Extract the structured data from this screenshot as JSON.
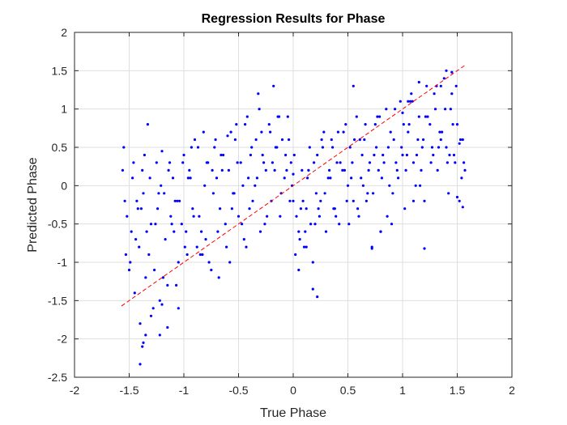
{
  "chart_data": {
    "type": "scatter",
    "title": "Regression Results for Phase",
    "xlabel": "True Phase",
    "ylabel": "Predicted Phase",
    "xlim": [
      -2,
      2
    ],
    "ylim": [
      -2.5,
      2
    ],
    "xticks": [
      -2,
      -1.5,
      -1,
      -0.5,
      0,
      0.5,
      1,
      1.5,
      2
    ],
    "xtick_labels": [
      "-2",
      "-1.5",
      "-1",
      "-0.5",
      "0",
      "0.5",
      "1",
      "1.5",
      "2"
    ],
    "yticks": [
      -2.5,
      -2,
      -1.5,
      -1,
      -0.5,
      0,
      0.5,
      1,
      1.5,
      2
    ],
    "ytick_labels": [
      "-2.5",
      "-2",
      "-1.5",
      "-1",
      "-0.5",
      "0",
      "0.5",
      "1",
      "1.5",
      "2"
    ],
    "grid": true,
    "colors": {
      "points": "#0000ff",
      "reference_line": "#ff0000",
      "grid": "#dfdfdf",
      "axes": "#262626"
    },
    "reference_line": {
      "style": "dashed",
      "x": [
        -1.57,
        1.57
      ],
      "y": [
        -1.57,
        1.57
      ]
    },
    "series": [
      {
        "x": [
          -1.55,
          -1.53,
          -1.5,
          -1.48,
          -1.45,
          -1.42,
          -1.4,
          -1.38,
          -1.35,
          -1.33,
          -1.3,
          -1.28,
          -1.25,
          -1.22,
          -1.2,
          -1.18,
          -1.15,
          -1.12,
          -1.1,
          -1.08,
          -1.05,
          -1.02,
          -1.0,
          -0.98,
          -0.95,
          -0.92,
          -0.9,
          -0.88,
          -0.85,
          -0.82,
          -0.8,
          -0.78,
          -0.75,
          -0.72,
          -0.7,
          -0.68,
          -0.65,
          -0.62,
          -0.6,
          -0.58,
          -0.55,
          -0.52,
          -0.5,
          -0.48,
          -0.45,
          -0.42,
          -0.4,
          -0.38,
          -0.35,
          -0.32,
          -0.3,
          -0.28,
          -0.25,
          -0.22,
          -0.2,
          -0.18,
          -0.15,
          -0.12,
          -0.1,
          -0.08,
          -0.05,
          -0.02,
          0.0,
          0.02,
          0.05,
          0.08,
          0.1,
          0.12,
          0.15,
          0.18,
          0.2,
          0.22,
          0.25,
          0.28,
          0.3,
          0.32,
          0.35,
          0.38,
          0.4,
          0.42,
          0.45,
          0.48,
          0.5,
          0.52,
          0.55,
          0.58,
          0.6,
          0.62,
          0.65,
          0.68,
          0.7,
          0.72,
          0.75,
          0.78,
          0.8,
          0.82,
          0.85,
          0.88,
          0.9,
          0.92,
          0.95,
          0.98,
          1.0,
          1.02,
          1.05,
          1.08,
          1.1,
          1.12,
          1.15,
          1.18,
          1.2,
          1.22,
          1.25,
          1.28,
          1.3,
          1.32,
          1.35,
          1.38,
          1.4,
          1.42,
          1.45,
          1.48,
          1.5,
          1.52,
          1.55,
          1.57,
          -1.56,
          -1.52,
          -1.49,
          -1.46,
          -1.43,
          -1.41,
          -1.37,
          -1.34,
          -1.31,
          -1.27,
          -1.24,
          -1.21,
          -1.17,
          -1.14,
          -1.11,
          -1.07,
          -1.04,
          -1.01,
          -0.97,
          -0.94,
          -0.91,
          -0.87,
          -0.84,
          -0.81,
          -0.77,
          -0.74,
          -0.71,
          -0.67,
          -0.64,
          -0.61,
          -0.57,
          -0.54,
          -0.51,
          -0.47,
          -0.44,
          -0.41,
          -0.37,
          -0.34,
          -0.31,
          -0.27,
          -0.24,
          -0.21,
          -0.17,
          -0.14,
          -0.11,
          -0.07,
          -0.04,
          -0.01,
          0.03,
          0.06,
          0.09,
          0.13,
          0.16,
          0.19,
          0.23,
          0.26,
          0.29,
          0.33,
          0.36,
          0.39,
          0.43,
          0.46,
          0.49,
          0.53,
          0.56,
          0.59,
          0.63,
          0.66,
          0.69,
          0.73,
          0.76,
          0.79,
          0.83,
          0.86,
          0.89,
          0.93,
          0.96,
          0.99,
          1.03,
          1.06,
          1.09,
          1.13,
          1.16,
          1.19,
          1.23,
          1.26,
          1.29,
          1.33,
          1.36,
          1.39,
          1.43,
          1.46,
          1.49,
          1.53,
          1.56,
          -1.54,
          -1.47,
          -1.44,
          -1.39,
          -1.36,
          -1.32,
          -1.26,
          -1.23,
          -1.19,
          -1.13,
          -1.09,
          -1.06,
          -0.99,
          -0.96,
          -0.93,
          -0.86,
          -0.83,
          -0.79,
          -0.73,
          -0.69,
          -0.66,
          -0.59,
          -0.56,
          -0.53,
          -0.46,
          -0.43,
          -0.39,
          -0.33,
          -0.29,
          -0.26,
          -0.19,
          -0.16,
          -0.13,
          -0.06,
          -0.03,
          0.01,
          0.07,
          0.11,
          0.14,
          0.21,
          0.24,
          0.27,
          0.34,
          0.37,
          0.41,
          0.47,
          0.51,
          0.54,
          0.61,
          0.64,
          0.67,
          0.74,
          0.77,
          0.81,
          0.87,
          0.91,
          0.94,
          1.01,
          1.04,
          1.07,
          1.14,
          1.17,
          1.21,
          1.27,
          1.31,
          1.34,
          1.41,
          1.44,
          1.47,
          1.54,
          -1.4,
          -1.38,
          -1.37,
          -1.35,
          -1.3,
          -1.22,
          -1.2,
          -1.15,
          -1.05,
          0.0,
          0.05,
          0.12,
          0.18,
          0.22,
          0.55,
          0.72,
          0.8,
          1.0,
          1.05,
          1.1,
          1.15,
          1.2,
          1.35,
          1.4,
          1.45,
          1.5,
          1.52,
          1.55
        ],
        "y": [
          0.5,
          -0.9,
          -1.1,
          -0.6,
          -1.4,
          -0.3,
          -1.8,
          0.2,
          -1.2,
          0.8,
          -0.5,
          -1.6,
          0.3,
          -1.5,
          0.45,
          -0.1,
          -1.3,
          -0.4,
          0.1,
          -0.2,
          -1.0,
          -0.5,
          0.4,
          -0.6,
          0.2,
          -0.3,
          0.6,
          -0.8,
          -0.9,
          0.7,
          -0.7,
          0.3,
          -1.1,
          0.5,
          0.1,
          -1.2,
          0.2,
          -0.5,
          0.65,
          -1.0,
          -0.1,
          0.8,
          -0.4,
          0.3,
          -0.7,
          0.9,
          -0.3,
          0.5,
          0.0,
          1.2,
          -0.6,
          0.4,
          0.2,
          0.8,
          -0.2,
          1.3,
          0.5,
          -0.4,
          0.6,
          0.1,
          0.9,
          0.3,
          -0.2,
          -0.9,
          -0.6,
          0.2,
          -0.8,
          -0.3,
          0.5,
          -1.0,
          -0.5,
          0.4,
          -0.2,
          0.7,
          -0.6,
          0.1,
          0.6,
          -0.3,
          0.3,
          -0.5,
          0.2,
          0.8,
          0.0,
          0.5,
          -0.2,
          0.9,
          -0.4,
          0.1,
          0.6,
          -0.1,
          0.3,
          -0.8,
          0.8,
          0.2,
          -0.6,
          0.4,
          1.0,
          0.0,
          -0.5,
          0.6,
          0.2,
          1.1,
          0.4,
          -0.3,
          0.7,
          1.2,
          0.3,
          0.0,
          0.9,
          0.5,
          -0.2,
          1.3,
          0.8,
          0.4,
          1.0,
          0.2,
          0.6,
          1.4,
          0.5,
          -0.1,
          1.2,
          0.3,
          0.8,
          -0.2,
          0.6,
          0.2,
          0.2,
          -0.4,
          -1.0,
          0.3,
          -0.2,
          -0.8,
          -0.1,
          -0.6,
          0.1,
          -1.1,
          -0.3,
          0.0,
          -0.7,
          0.2,
          -0.5,
          -1.3,
          -0.2,
          0.3,
          -0.9,
          0.1,
          -0.4,
          0.5,
          -0.6,
          0.0,
          -1.0,
          0.2,
          0.6,
          -0.3,
          0.4,
          -0.8,
          0.7,
          -0.1,
          0.3,
          -0.5,
          0.8,
          0.1,
          -0.2,
          0.6,
          1.0,
          0.3,
          -0.4,
          0.7,
          0.2,
          0.9,
          -0.1,
          0.4,
          0.6,
          0.0,
          -0.4,
          -0.7,
          -0.2,
          0.1,
          -0.5,
          0.3,
          -0.3,
          0.6,
          -0.1,
          0.2,
          0.5,
          -0.4,
          0.3,
          0.7,
          -0.2,
          0.1,
          0.6,
          -0.3,
          0.4,
          0.8,
          0.2,
          -0.1,
          0.5,
          0.9,
          0.3,
          -0.4,
          0.7,
          1.0,
          0.1,
          0.5,
          0.2,
          0.8,
          1.1,
          0.4,
          0.0,
          0.6,
          0.9,
          0.3,
          1.2,
          0.5,
          0.7,
          1.0,
          0.4,
          0.8,
          1.3,
          0.6,
          0.3,
          -0.2,
          0.1,
          -0.7,
          -0.3,
          0.4,
          -0.9,
          -0.5,
          -0.1,
          -1.2,
          0.3,
          -0.6,
          -0.2,
          -0.8,
          0.1,
          0.5,
          -0.4,
          -0.9,
          0.3,
          -0.1,
          -0.6,
          0.4,
          0.2,
          -0.3,
          0.6,
          0.0,
          -0.8,
          0.4,
          0.1,
          0.7,
          -0.5,
          0.3,
          0.5,
          0.9,
          0.2,
          -0.2,
          0.4,
          -0.3,
          -0.6,
          0.2,
          -0.1,
          -0.4,
          0.5,
          0.1,
          -0.3,
          0.7,
          0.2,
          -0.5,
          0.3,
          0.6,
          0.0,
          -0.2,
          0.4,
          0.9,
          0.1,
          0.5,
          -0.1,
          0.3,
          0.8,
          0.4,
          1.1,
          0.6,
          0.2,
          0.9,
          0.5,
          1.3,
          0.7,
          0.3,
          1.0,
          0.4,
          0.1,
          -2.33,
          -2.1,
          -2.05,
          -1.95,
          -1.7,
          -1.95,
          -1.55,
          -1.85,
          -1.6,
          0.15,
          -1.1,
          -0.8,
          -1.35,
          -1.45,
          1.3,
          -0.82,
          -0.6,
          0.95,
          1.1,
          -0.2,
          1.35,
          -0.82,
          1.3,
          1.5,
          1.48,
          -0.15,
          0.55,
          -0.28
        ]
      }
    ]
  }
}
